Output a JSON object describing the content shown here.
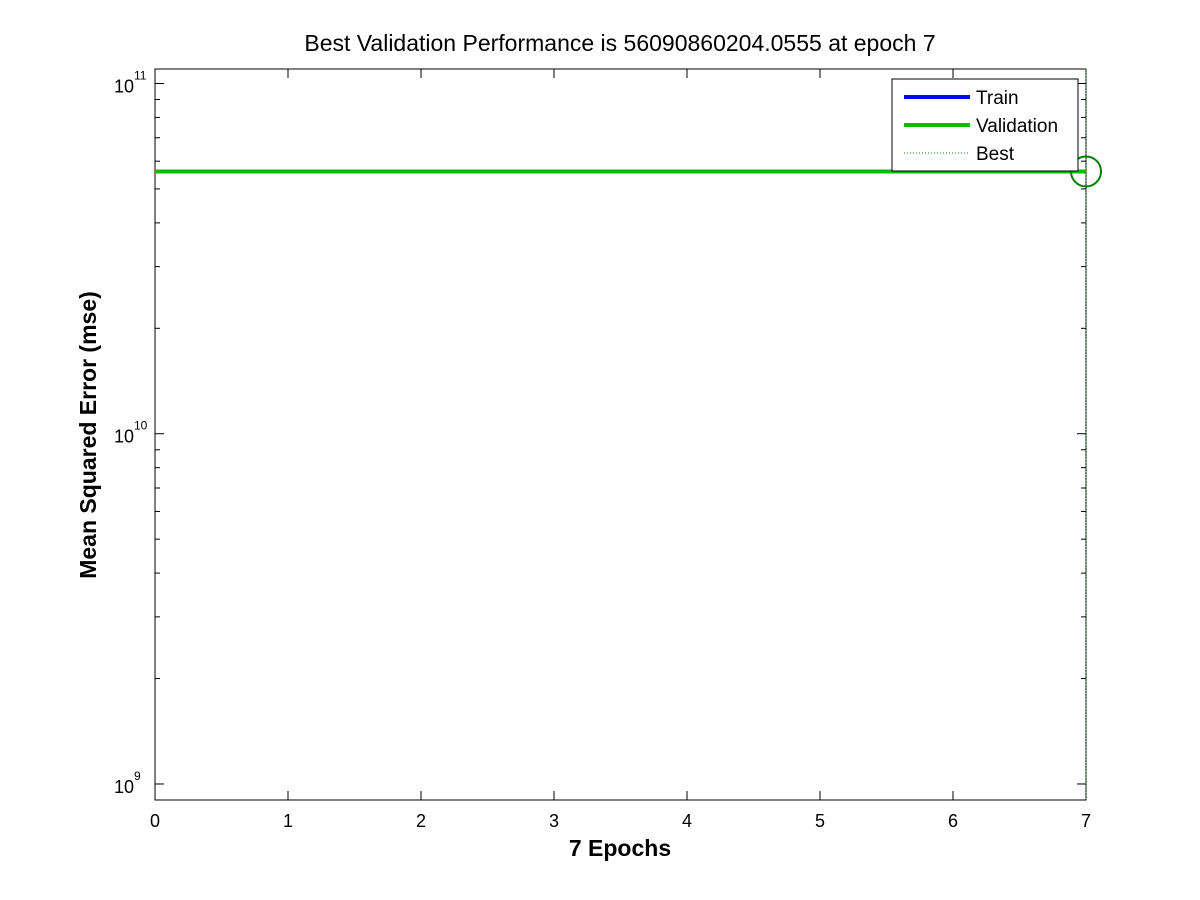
{
  "chart_data": {
    "type": "line",
    "title": "Best Validation Performance is 56090860204.0555 at epoch 7",
    "xlabel": "7 Epochs",
    "ylabel": "Mean Squared Error  (mse)",
    "xlim": [
      0,
      7
    ],
    "ylim": [
      900000000,
      110000000000
    ],
    "y_scale": "log",
    "x_ticks": [
      "0",
      "1",
      "2",
      "3",
      "4",
      "5",
      "6",
      "7"
    ],
    "y_ticks": [
      {
        "base": "10",
        "exp": "9",
        "value": 1000000000
      },
      {
        "base": "10",
        "exp": "10",
        "value": 10000000000
      },
      {
        "base": "10",
        "exp": "11",
        "value": 100000000000
      }
    ],
    "legend_position": "top-right",
    "series": [
      {
        "name": "Train",
        "color": "#0000ff",
        "style": "solid",
        "x": [
          0,
          1,
          2,
          3,
          4,
          5,
          6,
          7
        ],
        "y": [
          56090860204,
          56090860204,
          56090860204,
          56090860204,
          56090860204,
          56090860204,
          56090860204,
          56090860204
        ]
      },
      {
        "name": "Validation",
        "color": "#00c000",
        "style": "solid",
        "x": [
          0,
          1,
          2,
          3,
          4,
          5,
          6,
          7
        ],
        "y": [
          56090860204,
          56090860204,
          56090860204,
          56090860204,
          56090860204,
          56090860204,
          56090860204,
          56090860204
        ]
      },
      {
        "name": "Best",
        "color": "#008000",
        "style": "dotted"
      }
    ],
    "best": {
      "epoch": 7,
      "value": 56090860204.0555,
      "marker": "circle",
      "color": "#008000"
    },
    "grid": false
  }
}
